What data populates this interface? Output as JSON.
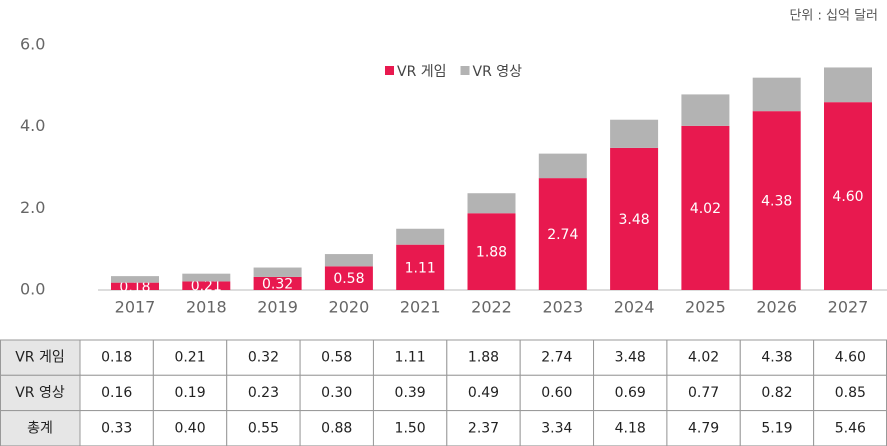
{
  "chart_data": {
    "type": "stacked_bar",
    "unit_note": "단위 : 십억 달러",
    "categories": [
      "2017",
      "2018",
      "2019",
      "2020",
      "2021",
      "2022",
      "2023",
      "2024",
      "2025",
      "2026",
      "2027"
    ],
    "series": [
      {
        "name": "VR 게임",
        "color": "#e8194f",
        "values": [
          0.18,
          0.21,
          0.32,
          0.58,
          1.11,
          1.88,
          2.74,
          3.48,
          4.02,
          4.38,
          4.6
        ],
        "value_labels": [
          "0.18",
          "0.21",
          "0.32",
          "0.58",
          "1.11",
          "1.88",
          "2.74",
          "3.48",
          "4.02",
          "4.38",
          "4.60"
        ]
      },
      {
        "name": "VR 영상",
        "color": "#b3b3b3",
        "values": [
          0.16,
          0.19,
          0.23,
          0.3,
          0.39,
          0.49,
          0.6,
          0.69,
          0.77,
          0.82,
          0.85
        ],
        "value_labels": [
          "0.16",
          "0.19",
          "0.23",
          "0.30",
          "0.39",
          "0.49",
          "0.60",
          "0.69",
          "0.77",
          "0.82",
          "0.85"
        ]
      }
    ],
    "ylim": [
      0,
      6
    ],
    "yticks": [
      {
        "value": 0,
        "label": "0.0"
      },
      {
        "value": 2,
        "label": "2.0"
      },
      {
        "value": 4,
        "label": "4.0"
      },
      {
        "value": 6,
        "label": "6.0"
      }
    ],
    "legend": "top",
    "table": {
      "total_label": "총계",
      "totals": [
        "0.33",
        "0.40",
        "0.55",
        "0.88",
        "1.50",
        "2.37",
        "3.34",
        "4.18",
        "4.79",
        "5.19",
        "5.46"
      ]
    }
  }
}
